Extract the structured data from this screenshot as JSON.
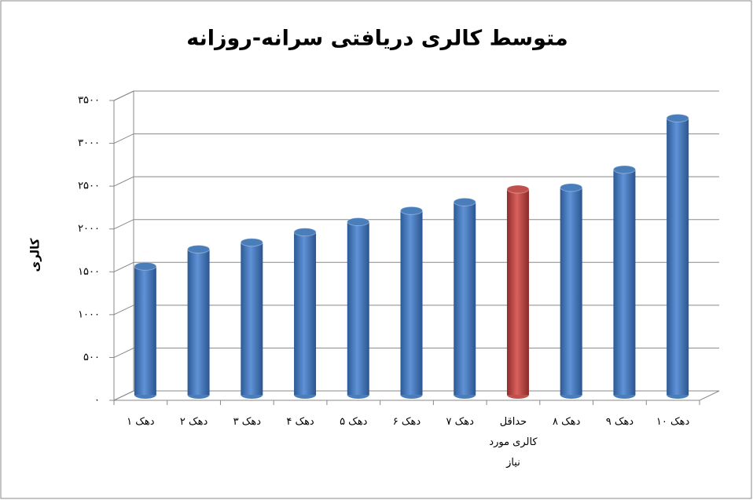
{
  "chart_data": {
    "type": "bar",
    "title": "متوسط کالری دریافتی سرانه-روزانه",
    "y_label": "کالری",
    "categories": [
      "دهک ۱",
      "دهک ۲",
      "دهک ۳",
      "دهک ۴",
      "دهک ۵",
      "دهک ۶",
      "دهک ۷",
      "حداقل کالری مورد نیاز",
      "دهک ۸",
      "دهک ۹",
      "دهک ۱۰"
    ],
    "values": [
      1500,
      1700,
      1780,
      1900,
      2020,
      2150,
      2250,
      2400,
      2420,
      2630,
      3230
    ],
    "colors": [
      "#4a7ebb",
      "#4a7ebb",
      "#4a7ebb",
      "#4a7ebb",
      "#4a7ebb",
      "#4a7ebb",
      "#4a7ebb",
      "#c0504d",
      "#4a7ebb",
      "#4a7ebb",
      "#4a7ebb"
    ],
    "ylim": [
      0,
      3500
    ],
    "yticks": [
      {
        "value": 0,
        "label": "۰"
      },
      {
        "value": 500,
        "label": "۵۰۰"
      },
      {
        "value": 1000,
        "label": "۱۰۰۰"
      },
      {
        "value": 1500,
        "label": "۱۵۰۰"
      },
      {
        "value": 2000,
        "label": "۲۰۰۰"
      },
      {
        "value": 2500,
        "label": "۲۵۰۰"
      },
      {
        "value": 3000,
        "label": "۳۰۰۰"
      },
      {
        "value": 3500,
        "label": "۳۵۰۰"
      }
    ],
    "grid": true
  }
}
